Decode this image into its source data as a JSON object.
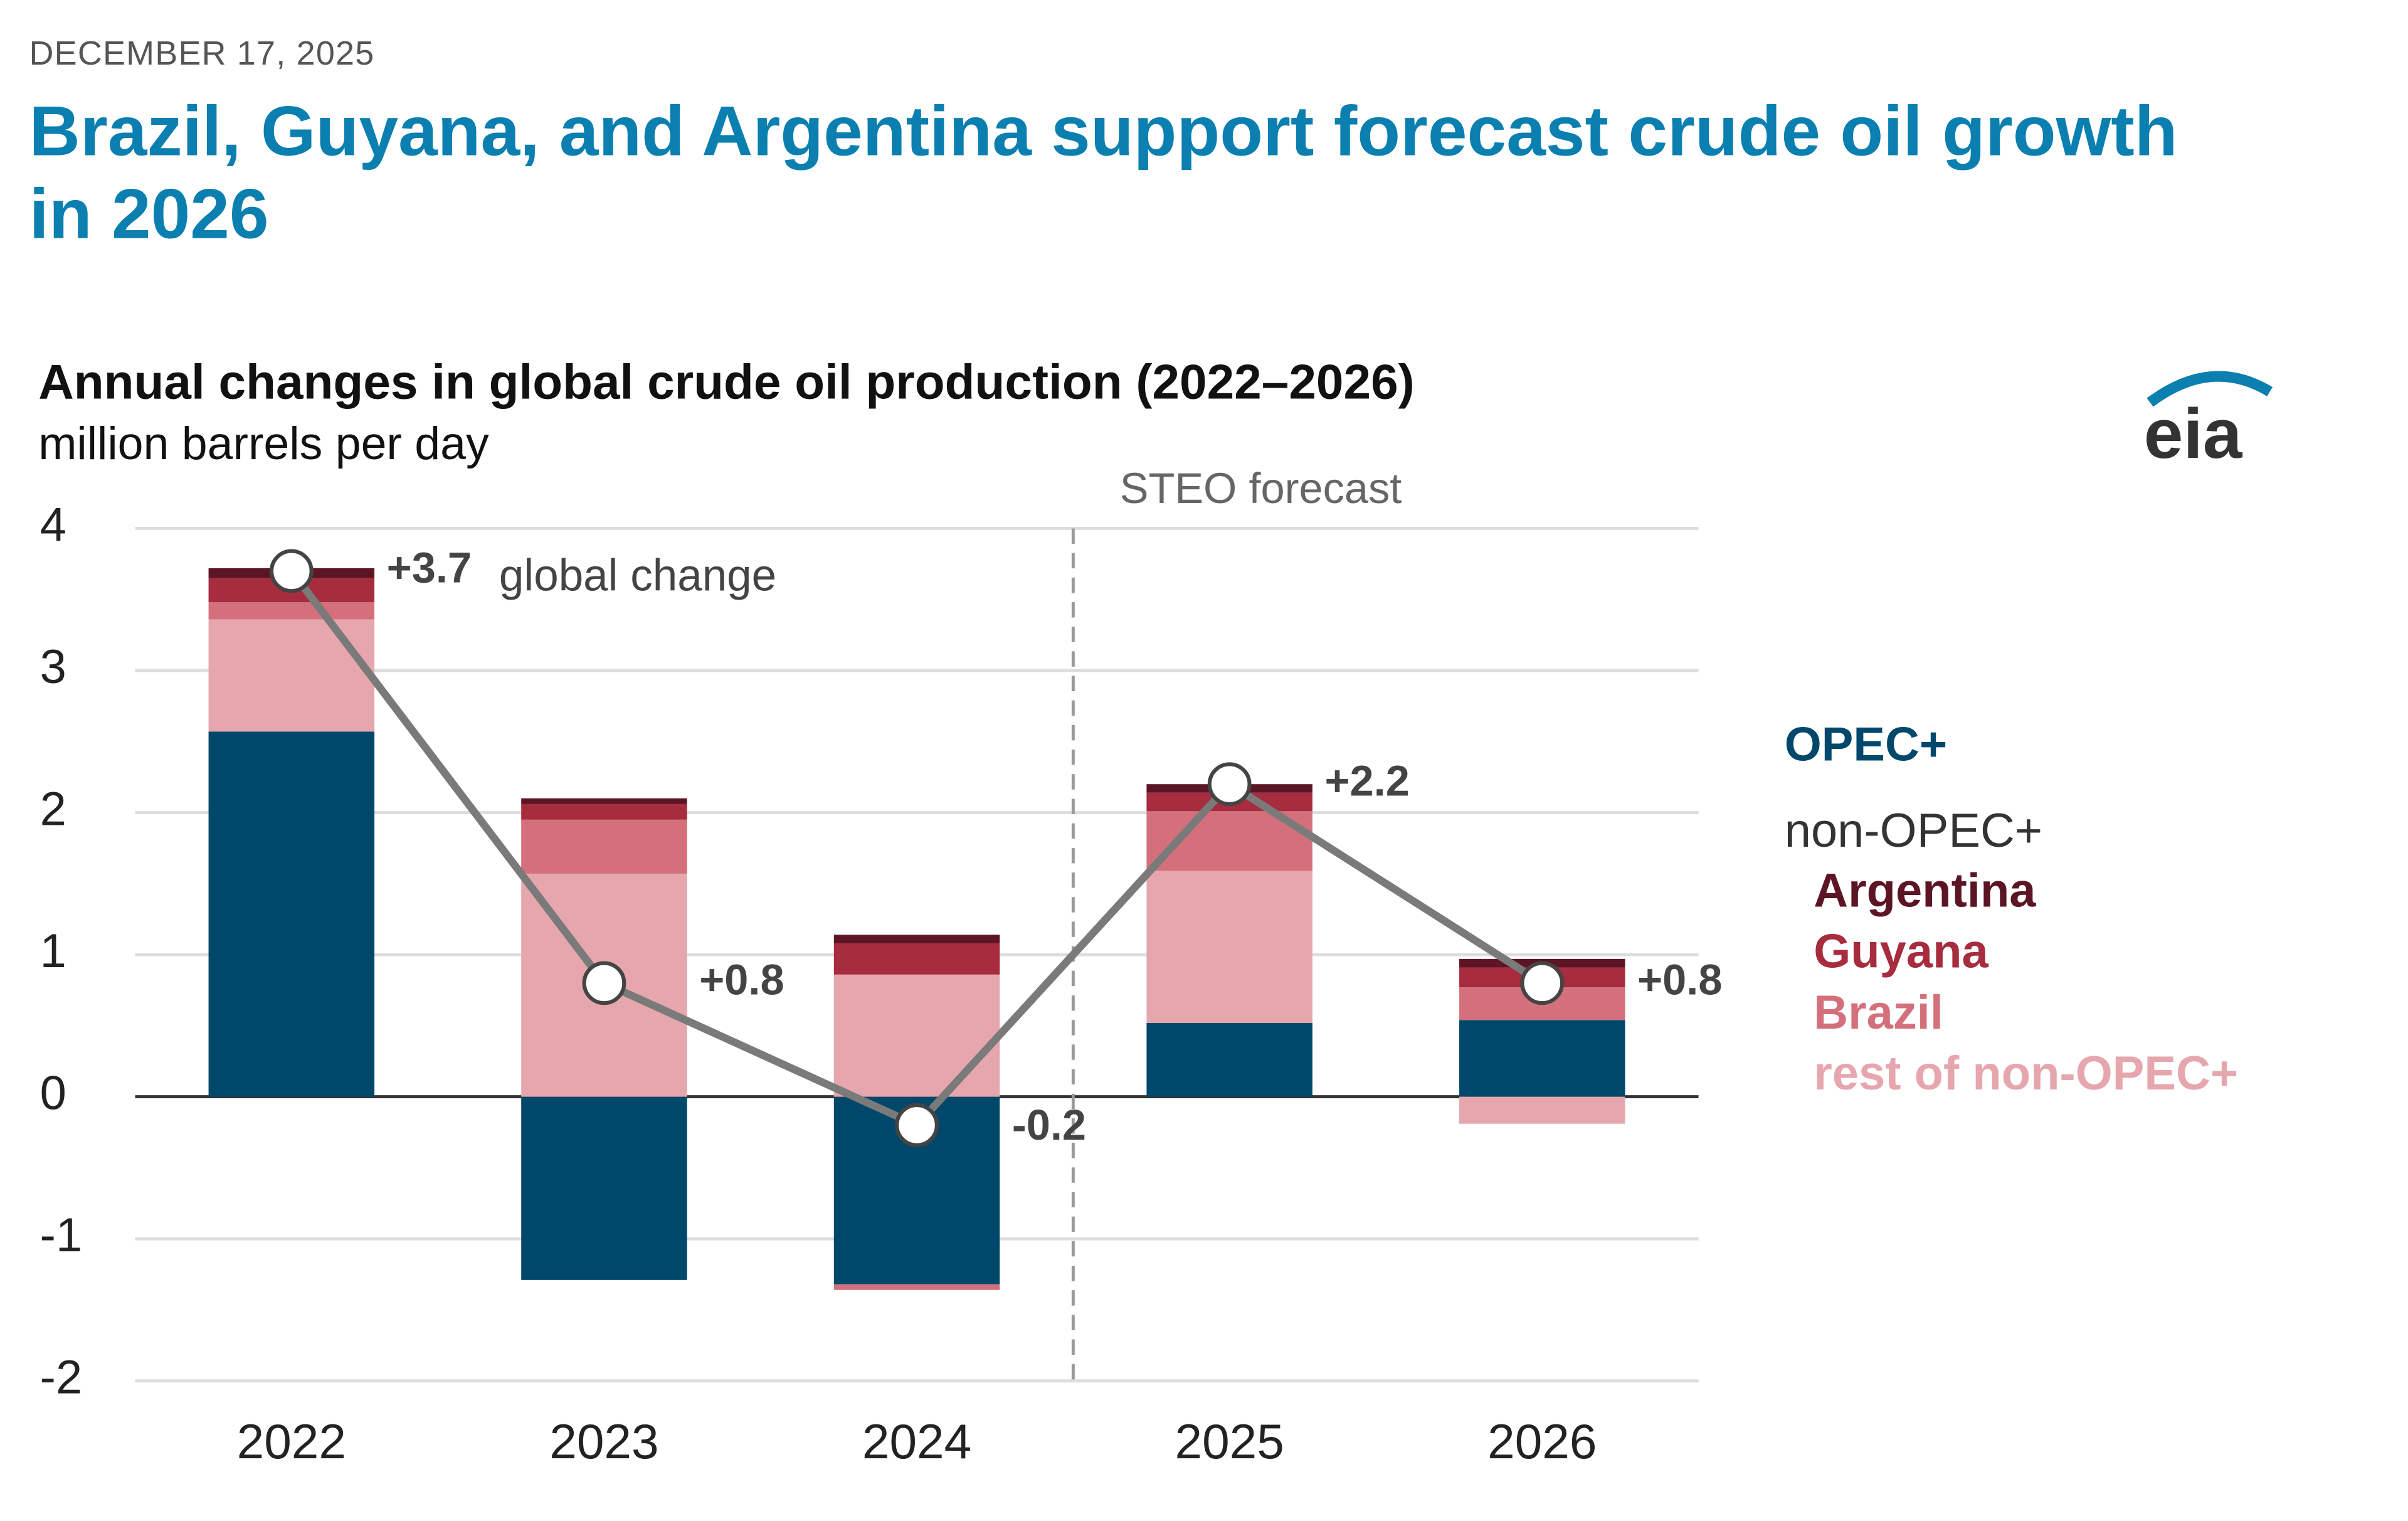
{
  "date": "DECEMBER 17, 2025",
  "headline": "Brazil, Guyana, and Argentina support forecast crude oil growth in 2026",
  "logo": "eia",
  "chart_data": {
    "type": "bar",
    "stacked": true,
    "title": "Annual changes in global crude oil production (2022–2026)",
    "subtitle": "million barrels per day",
    "categories": [
      "2022",
      "2023",
      "2024",
      "2025",
      "2026"
    ],
    "series": [
      {
        "name": "OPEC+",
        "color": "#00486b",
        "values": [
          2.57,
          -1.29,
          -1.32,
          0.52,
          0.54
        ]
      },
      {
        "name": "rest of non-OPEC+",
        "color": "#e6a6ad",
        "values": [
          0.79,
          1.57,
          0.86,
          1.07,
          -0.19
        ]
      },
      {
        "name": "Brazil",
        "color": "#d4707c",
        "values": [
          0.12,
          0.38,
          -0.04,
          0.42,
          0.23
        ]
      },
      {
        "name": "Guyana",
        "color": "#a62c3e",
        "values": [
          0.17,
          0.11,
          0.22,
          0.13,
          0.14
        ]
      },
      {
        "name": "Argentina",
        "color": "#5c1524",
        "values": [
          0.07,
          0.04,
          0.06,
          0.06,
          0.06
        ]
      }
    ],
    "line": {
      "label": "global change",
      "color": "#7a7a7a",
      "values": [
        3.7,
        0.8,
        -0.2,
        2.2,
        0.8
      ],
      "value_labels": [
        "+3.7",
        "+0.8",
        "-0.2",
        "+2.2",
        "+0.8"
      ]
    },
    "legend_heading": "non-OPEC+",
    "forecast_label": "STEO forecast",
    "ylim": [
      -2,
      4
    ],
    "yticks": [
      -2,
      -1,
      0,
      1,
      2,
      3,
      4
    ],
    "grid": true
  }
}
